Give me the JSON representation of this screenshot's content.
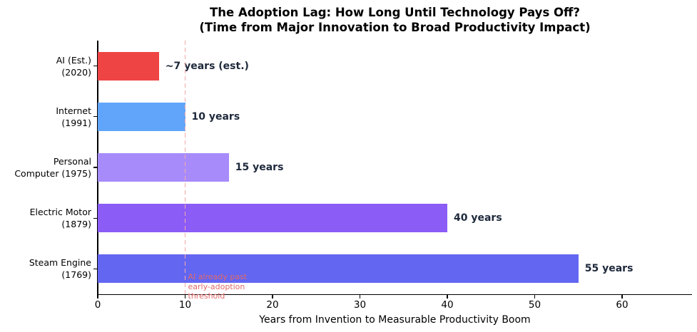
{
  "title": {
    "line1": "The Adoption Lag: How Long Until Technology Pays Off?",
    "line2": "(Time from Major Innovation to Broad Productivity Impact)"
  },
  "chart_data": {
    "type": "bar",
    "orientation": "horizontal",
    "title": "The Adoption Lag: How Long Until Technology Pays Off?\n(Time from Major Innovation to Broad Productivity Impact)",
    "xlabel": "Years from Invention to Measurable Productivity Boom",
    "categories": [
      "AI (Est.)\n(2020)",
      "Internet\n(1991)",
      "Personal\nComputer (1975)",
      "Electric Motor\n(1879)",
      "Steam Engine\n(1769)"
    ],
    "values": [
      7,
      10,
      15,
      40,
      55
    ],
    "value_labels": [
      "~7 years (est.)",
      "10 years",
      "15 years",
      "40 years",
      "55 years"
    ],
    "bar_colors": [
      "#ef4444",
      "#60a5fa",
      "#a78bfa",
      "#8b5cf6",
      "#6366f1"
    ],
    "value_label_color": "#1e293b",
    "xticks": [
      0,
      10,
      20,
      30,
      40,
      50,
      60
    ],
    "xlim": [
      0,
      68
    ],
    "grid": false,
    "legend_position": "none",
    "reference_line": {
      "x": 10,
      "style": "dashed",
      "color": "#f5aaaa",
      "label": "AI already past\nearly-adoption\nthreshold",
      "label_color": "#e06a6a"
    }
  }
}
